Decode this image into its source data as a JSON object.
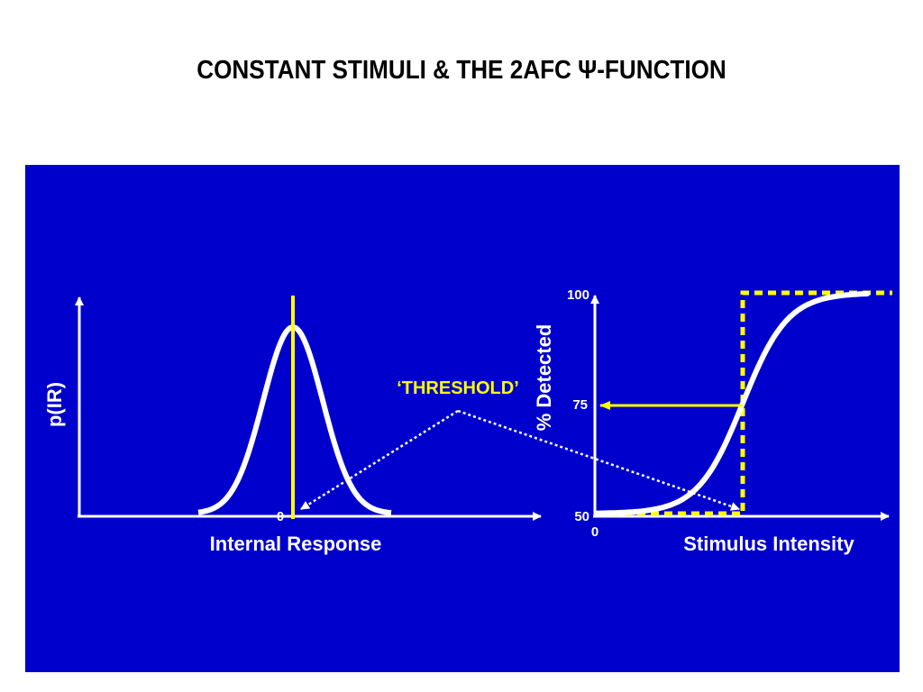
{
  "title": "CONSTANT STIMULI & THE 2AFC Ψ-FUNCTION",
  "colors": {
    "panel_background": "#0000CC",
    "curve": "#FFFFFF",
    "highlight": "#FFFF00"
  },
  "left_panel": {
    "y_label": "p(IR)",
    "x_label": "Internal Response",
    "zero_label": "0"
  },
  "right_panel": {
    "y_label": "% Detected",
    "x_label": "Stimulus Intensity",
    "y_ticks": [
      "100",
      "75",
      "50"
    ],
    "x_zero_label": "0"
  },
  "threshold_label": "‘THRESHOLD’"
}
